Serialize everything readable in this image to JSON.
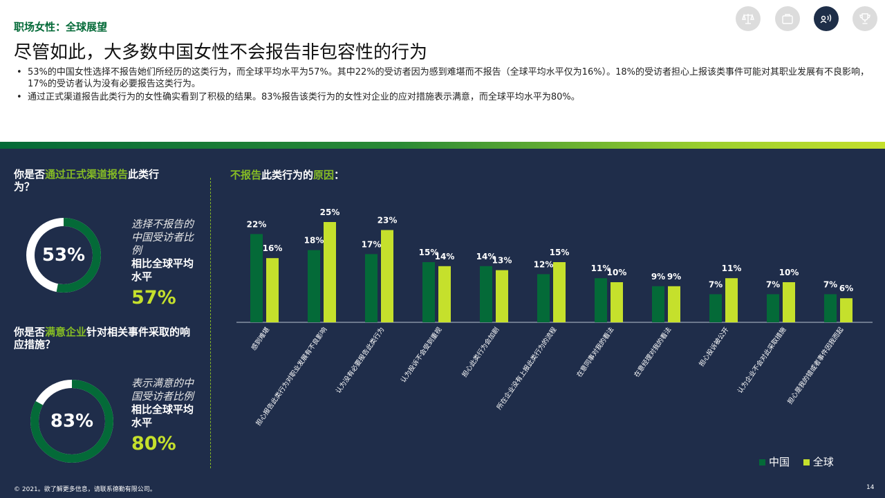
{
  "header": {
    "section_label": "职场女性：全球展望",
    "title": "尽管如此，大多数中国女性不会报告非包容性的行为",
    "bullets": [
      "53%的中国女性选择不报告她们所经历的这类行为，而全球平均水平为57%。其中22%的受访者因为感到难堪而不报告（全球平均水平仅为16%）。18%的受访者担心上报该类事件可能对其职业发展有不良影响，17%的受访者认为没有必要报告这类行为。",
      "通过正式渠道报告此类行为的女性确实看到了积极的结果。83%报告该类行为的女性对企业的应对措施表示满意，而全球平均水平为80%。"
    ]
  },
  "nav_icons": [
    "scales-icon",
    "briefcase-icon",
    "voice-icon",
    "trophy-icon"
  ],
  "colors": {
    "china": "#046a38",
    "global": "#c5e02c",
    "accent": "#86bc25",
    "panel_bg": "#1f2d4a"
  },
  "left": {
    "q1_pre": "你是否",
    "q1_hl": "通过正式渠道报告",
    "q1_post": "此类行为？",
    "donut1": {
      "pct_label": "53%",
      "value": 53
    },
    "note1_italic": "选择不报告的中国受访者比例",
    "note1_bold": "相比全球平均水平",
    "note1_global": "57%",
    "q2_pre": "你是否",
    "q2_hl": "满意企业",
    "q2_post": "针对相关事件采取的响应措施？",
    "donut2": {
      "pct_label": "83%",
      "value": 83
    },
    "note2_italic": "表示满意的中国受访者比例",
    "note2_bold": "相比全球平均水平",
    "note2_global": "80%"
  },
  "chart_title": {
    "pre": "不报告",
    "mid1": "此类行为的",
    "hl2": "原因",
    "post": "："
  },
  "chart_data": {
    "type": "bar",
    "categories": [
      "感到难堪",
      "担心报告此类行为对职业发展有不良影响",
      "认为没有必要报告此类行为",
      "认为投诉不会受到重视",
      "担心此类行为会加剧",
      "所在企业没有上报此类行为的流程",
      "在意同事对我的看法",
      "在意经理对我的看法",
      "担心投诉被公开",
      "认为企业不会对此采取措施",
      "担心是我的错或者事件因我而起"
    ],
    "series": [
      {
        "name": "中国",
        "values": [
          22,
          18,
          17,
          15,
          14,
          12,
          11,
          9,
          7,
          7,
          7
        ]
      },
      {
        "name": "全球",
        "values": [
          16,
          25,
          23,
          14,
          13,
          15,
          10,
          9,
          11,
          10,
          6
        ]
      }
    ],
    "value_labels": {
      "china": [
        "22%",
        "18%",
        "17%",
        "15%",
        "14%",
        "12%",
        "11%",
        "9%",
        "7%",
        "7%",
        "7%"
      ],
      "global": [
        "16%",
        "25%",
        "23%",
        "14%",
        "13%",
        "15%",
        "10%",
        "9%",
        "11%",
        "10%",
        "6%"
      ]
    },
    "ylim": [
      0,
      25
    ],
    "grid": false,
    "legend": "bottom-right"
  },
  "footer": {
    "copyright": "© 2021。欲了解更多信息，请联系德勤有限公司。",
    "page": "14"
  }
}
